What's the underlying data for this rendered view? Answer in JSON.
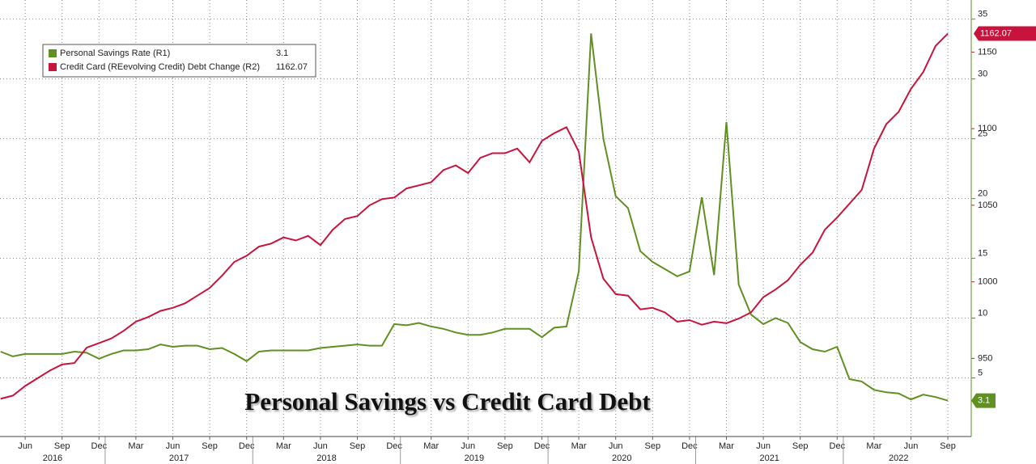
{
  "chart_data": {
    "type": "line",
    "title": "Personal Savings vs Credit Card Debt",
    "x": [
      "2016-04",
      "2016-05",
      "2016-06",
      "2016-07",
      "2016-08",
      "2016-09",
      "2016-10",
      "2016-11",
      "2016-12",
      "2017-01",
      "2017-02",
      "2017-03",
      "2017-04",
      "2017-05",
      "2017-06",
      "2017-07",
      "2017-08",
      "2017-09",
      "2017-10",
      "2017-11",
      "2017-12",
      "2018-01",
      "2018-02",
      "2018-03",
      "2018-04",
      "2018-05",
      "2018-06",
      "2018-07",
      "2018-08",
      "2018-09",
      "2018-10",
      "2018-11",
      "2018-12",
      "2019-01",
      "2019-02",
      "2019-03",
      "2019-04",
      "2019-05",
      "2019-06",
      "2019-07",
      "2019-08",
      "2019-09",
      "2019-10",
      "2019-11",
      "2019-12",
      "2020-01",
      "2020-02",
      "2020-03",
      "2020-04",
      "2020-05",
      "2020-06",
      "2020-07",
      "2020-08",
      "2020-09",
      "2020-10",
      "2020-11",
      "2020-12",
      "2021-01",
      "2021-02",
      "2021-03",
      "2021-04",
      "2021-05",
      "2021-06",
      "2021-07",
      "2021-08",
      "2021-09",
      "2021-10",
      "2021-11",
      "2021-12",
      "2022-01",
      "2022-02",
      "2022-03",
      "2022-04",
      "2022-05",
      "2022-06",
      "2022-07",
      "2022-08",
      "2022-09"
    ],
    "xticks": [
      {
        "value": "2016-06",
        "label": "Jun"
      },
      {
        "value": "2016-09",
        "label": "Sep"
      },
      {
        "value": "2016-12",
        "label": "Dec"
      },
      {
        "value": "2017-03",
        "label": "Mar"
      },
      {
        "value": "2017-06",
        "label": "Jun"
      },
      {
        "value": "2017-09",
        "label": "Sep"
      },
      {
        "value": "2017-12",
        "label": "Dec"
      },
      {
        "value": "2018-03",
        "label": "Mar"
      },
      {
        "value": "2018-06",
        "label": "Jun"
      },
      {
        "value": "2018-09",
        "label": "Sep"
      },
      {
        "value": "2018-12",
        "label": "Dec"
      },
      {
        "value": "2019-03",
        "label": "Mar"
      },
      {
        "value": "2019-06",
        "label": "Jun"
      },
      {
        "value": "2019-09",
        "label": "Sep"
      },
      {
        "value": "2019-12",
        "label": "Dec"
      },
      {
        "value": "2020-03",
        "label": "Mar"
      },
      {
        "value": "2020-06",
        "label": "Jun"
      },
      {
        "value": "2020-09",
        "label": "Sep"
      },
      {
        "value": "2020-12",
        "label": "Dec"
      },
      {
        "value": "2021-03",
        "label": "Mar"
      },
      {
        "value": "2021-06",
        "label": "Jun"
      },
      {
        "value": "2021-09",
        "label": "Sep"
      },
      {
        "value": "2021-12",
        "label": "Dec"
      },
      {
        "value": "2022-03",
        "label": "Mar"
      },
      {
        "value": "2022-06",
        "label": "Jun"
      },
      {
        "value": "2022-09",
        "label": "Sep"
      }
    ],
    "year_labels": [
      "2016",
      "2017",
      "2018",
      "2019",
      "2020",
      "2021",
      "2022"
    ],
    "ylim": [
      0.1,
      36.6
    ],
    "yticks": [
      5,
      10,
      15,
      20,
      25,
      30,
      35
    ],
    "y2lim": [
      899,
      1184
    ],
    "y2ticks": [
      950,
      1000,
      1050,
      1100,
      1150
    ],
    "grid": true,
    "legend": "upper left",
    "series": [
      {
        "name": "Personal Savings Rate (R1)",
        "color": "#5f9020",
        "axis": "y",
        "values": [
          7.2,
          6.8,
          7.0,
          7.0,
          7.0,
          7.0,
          7.2,
          7.1,
          6.6,
          7.0,
          7.3,
          7.3,
          7.4,
          7.8,
          7.6,
          7.7,
          7.7,
          7.4,
          7.5,
          7.0,
          6.4,
          7.2,
          7.3,
          7.3,
          7.3,
          7.3,
          7.5,
          7.6,
          7.7,
          7.8,
          7.7,
          7.7,
          9.5,
          9.4,
          9.6,
          9.3,
          9.1,
          8.8,
          8.6,
          8.6,
          8.8,
          9.1,
          9.1,
          9.1,
          8.4,
          9.2,
          9.3,
          13.9,
          33.8,
          25,
          20.2,
          19.2,
          15.6,
          14.7,
          14.1,
          13.5,
          13.9,
          20.1,
          13.6,
          26.4,
          12.8,
          10.3,
          9.5,
          10,
          9.6,
          8.0,
          7.4,
          7.2,
          7.6,
          4.9,
          4.7,
          4.0,
          3.8,
          3.7,
          3.2,
          3.6,
          3.4,
          3.1
        ]
      },
      {
        "name": "Credit Card (REevolving Credit) Debt Change (R2)",
        "color": "#c8143c",
        "axis": "y2",
        "values": [
          923.6,
          925.7,
          932,
          937,
          942,
          946,
          947,
          957,
          960,
          963,
          968,
          974,
          977,
          981,
          983,
          986,
          991,
          996,
          1004,
          1013,
          1017,
          1023,
          1025,
          1029,
          1027,
          1030,
          1024,
          1034,
          1041,
          1043,
          1050,
          1054,
          1055,
          1061,
          1063,
          1065,
          1073,
          1076,
          1071,
          1081,
          1084,
          1084,
          1087,
          1078,
          1092,
          1097,
          1101,
          1085,
          1029,
          1002,
          992,
          991,
          982,
          983,
          980,
          974,
          975,
          972,
          974,
          973,
          976,
          980,
          990,
          995,
          1001,
          1011,
          1019,
          1034,
          1042,
          1051,
          1060,
          1087,
          1103,
          1111,
          1126,
          1137,
          1154,
          1162.07
        ]
      }
    ]
  }
}
